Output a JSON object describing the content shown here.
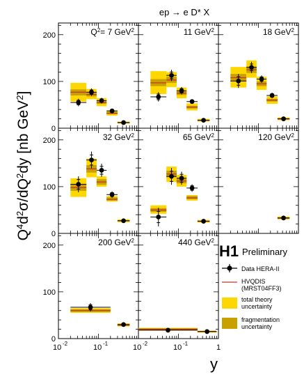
{
  "title": "ep → e D* X",
  "ylabel_parts": {
    "q4": "Q",
    "q4sup": "4",
    "d2": "d",
    "d2sup": "2",
    "sigma": "σ/dQ",
    "q2sup": "2",
    "dy": "dy [nb GeV",
    "unitsup": "2",
    "close": "]"
  },
  "xlabel": "y",
  "x_ticks": [
    "10",
    "-2",
    "10",
    "-1",
    "1"
  ],
  "y_ticks": [
    "0",
    "100",
    "200"
  ],
  "experiment": "H1",
  "status": "Preliminary",
  "legend": {
    "data": "Data HERA-II",
    "model_line1": "HVQDIS",
    "model_line2": "(MRST04FF3)",
    "total_line1": "total theory",
    "total_line2": "uncertainty",
    "frag_line1": "fragmentation",
    "frag_line2": "uncertainty"
  },
  "colors": {
    "total_band": "#ffd700",
    "fragmentation_band": "#c8a000",
    "theory_line": "#c0392b",
    "data": "#000000"
  },
  "chart_data": {
    "type": "scatter",
    "title": "ep → e D* X",
    "xlabel": "y",
    "ylabel": "Q^4 d^2σ/dQ^2 dy [nb GeV^2]",
    "x_scale": "log",
    "xlim": [
      0.01,
      1
    ],
    "ylim": [
      0,
      225
    ],
    "panels": [
      {
        "label": "Q² = 7 GeV²",
        "label_parts": {
          "pre": "Q",
          "presup": "2",
          "mid": "=  7 GeV",
          "sup": "2"
        },
        "points": [
          {
            "xlo": 0.02,
            "xhi": 0.05,
            "y": 55,
            "err": 8,
            "theory": 77,
            "frag_lo": 70,
            "frag_hi": 83,
            "tot_lo": 57,
            "tot_hi": 97
          },
          {
            "xlo": 0.05,
            "xhi": 0.09,
            "y": 77,
            "err": 8,
            "theory": 72,
            "frag_lo": 68,
            "frag_hi": 77,
            "tot_lo": 62,
            "tot_hi": 84
          },
          {
            "xlo": 0.09,
            "xhi": 0.16,
            "y": 59,
            "err": 6,
            "theory": 55,
            "frag_lo": 52,
            "frag_hi": 58,
            "tot_lo": 47,
            "tot_hi": 64
          },
          {
            "xlo": 0.16,
            "xhi": 0.3,
            "y": 37,
            "err": 4,
            "theory": 32,
            "frag_lo": 30,
            "frag_hi": 35,
            "tot_lo": 27,
            "tot_hi": 38
          },
          {
            "xlo": 0.3,
            "xhi": 0.6,
            "y": 12,
            "err": 2,
            "theory": 12,
            "frag_lo": 11,
            "frag_hi": 13,
            "tot_lo": 10,
            "tot_hi": 14
          }
        ]
      },
      {
        "label": "11 GeV²",
        "label_parts": {
          "pre": "",
          "presup": "",
          "mid": "11 GeV",
          "sup": "2"
        },
        "points": [
          {
            "xlo": 0.02,
            "xhi": 0.05,
            "y": 67,
            "err": 10,
            "theory": 97,
            "frag_lo": 90,
            "frag_hi": 105,
            "tot_lo": 73,
            "tot_hi": 122
          },
          {
            "xlo": 0.05,
            "xhi": 0.09,
            "y": 113,
            "err": 12,
            "theory": 103,
            "frag_lo": 97,
            "frag_hi": 110,
            "tot_lo": 88,
            "tot_hi": 120
          },
          {
            "xlo": 0.09,
            "xhi": 0.16,
            "y": 80,
            "err": 8,
            "theory": 75,
            "frag_lo": 71,
            "frag_hi": 79,
            "tot_lo": 64,
            "tot_hi": 87
          },
          {
            "xlo": 0.16,
            "xhi": 0.3,
            "y": 57,
            "err": 5,
            "theory": 45,
            "frag_lo": 42,
            "frag_hi": 48,
            "tot_lo": 38,
            "tot_hi": 53
          },
          {
            "xlo": 0.3,
            "xhi": 0.6,
            "y": 17,
            "err": 3,
            "theory": 17,
            "frag_lo": 16,
            "frag_hi": 18,
            "tot_lo": 14,
            "tot_hi": 20
          }
        ]
      },
      {
        "label": "18 GeV²",
        "label_parts": {
          "pre": "",
          "presup": "",
          "mid": "18 GeV",
          "sup": "2"
        },
        "points": [
          {
            "xlo": 0.02,
            "xhi": 0.05,
            "y": 101,
            "err": 15,
            "theory": 108,
            "frag_lo": 100,
            "frag_hi": 116,
            "tot_lo": 87,
            "tot_hi": 131
          },
          {
            "xlo": 0.05,
            "xhi": 0.09,
            "y": 130,
            "err": 12,
            "theory": 125,
            "frag_lo": 118,
            "frag_hi": 132,
            "tot_lo": 108,
            "tot_hi": 145
          },
          {
            "xlo": 0.09,
            "xhi": 0.16,
            "y": 105,
            "err": 8,
            "theory": 95,
            "frag_lo": 90,
            "frag_hi": 100,
            "tot_lo": 82,
            "tot_hi": 110
          },
          {
            "xlo": 0.16,
            "xhi": 0.3,
            "y": 70,
            "err": 6,
            "theory": 60,
            "frag_lo": 57,
            "frag_hi": 63,
            "tot_lo": 52,
            "tot_hi": 68
          },
          {
            "xlo": 0.3,
            "xhi": 0.6,
            "y": 20,
            "err": 3,
            "theory": 20,
            "frag_lo": 19,
            "frag_hi": 21,
            "tot_lo": 17,
            "tot_hi": 23
          }
        ]
      },
      {
        "label": "32 GeV²",
        "label_parts": {
          "pre": "",
          "presup": "",
          "mid": "32 GeV",
          "sup": "2"
        },
        "points": [
          {
            "xlo": 0.02,
            "xhi": 0.05,
            "y": 105,
            "err": 17,
            "theory": 98,
            "frag_lo": 91,
            "frag_hi": 106,
            "tot_lo": 78,
            "tot_hi": 118
          },
          {
            "xlo": 0.05,
            "xhi": 0.09,
            "y": 157,
            "err": 18,
            "theory": 138,
            "frag_lo": 130,
            "frag_hi": 146,
            "tot_lo": 120,
            "tot_hi": 160
          },
          {
            "xlo": 0.09,
            "xhi": 0.16,
            "y": 135,
            "err": 14,
            "theory": 110,
            "frag_lo": 104,
            "frag_hi": 116,
            "tot_lo": 100,
            "tot_hi": 122
          },
          {
            "xlo": 0.16,
            "xhi": 0.3,
            "y": 83,
            "err": 7,
            "theory": 73,
            "frag_lo": 70,
            "frag_hi": 77,
            "tot_lo": 68,
            "tot_hi": 80
          },
          {
            "xlo": 0.3,
            "xhi": 0.6,
            "y": 27,
            "err": 3,
            "theory": 27,
            "frag_lo": 26,
            "frag_hi": 28,
            "tot_lo": 24,
            "tot_hi": 30
          }
        ]
      },
      {
        "label": "65 GeV²",
        "label_parts": {
          "pre": "",
          "presup": "",
          "mid": "65 GeV",
          "sup": "2"
        },
        "points": [
          {
            "xlo": 0.02,
            "xhi": 0.05,
            "y": 35,
            "err": 20,
            "theory": 50,
            "frag_lo": 46,
            "frag_hi": 54,
            "tot_lo": 42,
            "tot_hi": 60
          },
          {
            "xlo": 0.05,
            "xhi": 0.09,
            "y": 122,
            "err": 18,
            "theory": 127,
            "frag_lo": 120,
            "frag_hi": 134,
            "tot_lo": 110,
            "tot_hi": 143
          },
          {
            "xlo": 0.09,
            "xhi": 0.16,
            "y": 118,
            "err": 14,
            "theory": 112,
            "frag_lo": 107,
            "frag_hi": 117,
            "tot_lo": 100,
            "tot_hi": 125
          },
          {
            "xlo": 0.16,
            "xhi": 0.3,
            "y": 97,
            "err": 8,
            "theory": 76,
            "frag_lo": 73,
            "frag_hi": 80,
            "tot_lo": 70,
            "tot_hi": 82
          },
          {
            "xlo": 0.3,
            "xhi": 0.6,
            "y": 26,
            "err": 3,
            "theory": 26,
            "frag_lo": 25,
            "frag_hi": 27,
            "tot_lo": 23,
            "tot_hi": 29
          }
        ]
      },
      {
        "label": "120 GeV²",
        "label_parts": {
          "pre": "",
          "presup": "",
          "mid": "120 GeV",
          "sup": "2"
        },
        "points": [
          {
            "xlo": 0.3,
            "xhi": 0.6,
            "y": 33,
            "err": 5,
            "theory": 33,
            "frag_lo": 31,
            "frag_hi": 34,
            "tot_lo": 30,
            "tot_hi": 36
          }
        ]
      },
      {
        "label": "200 GeV²",
        "label_parts": {
          "pre": "",
          "presup": "",
          "mid": "200 GeV",
          "sup": "2"
        },
        "points": [
          {
            "xlo": 0.02,
            "xhi": 0.2,
            "y": 67,
            "err": 9,
            "theory": 60,
            "frag_lo": 57,
            "frag_hi": 63,
            "tot_lo": 55,
            "tot_hi": 65
          },
          {
            "xlo": 0.3,
            "xhi": 0.6,
            "y": 30,
            "err": 4,
            "theory": 29,
            "frag_lo": 27,
            "frag_hi": 31,
            "tot_lo": 26,
            "tot_hi": 33
          }
        ]
      },
      {
        "label": "440 GeV²",
        "label_parts": {
          "pre": "",
          "presup": "",
          "mid": "440 GeV",
          "sup": "2"
        },
        "points": [
          {
            "xlo": 0.01,
            "xhi": 0.3,
            "y": 18,
            "err": 4,
            "theory": 20,
            "frag_lo": 18,
            "frag_hi": 22,
            "tot_lo": 17,
            "tot_hi": 23
          },
          {
            "xlo": 0.3,
            "xhi": 0.9,
            "y": 15,
            "err": 3,
            "theory": 15,
            "frag_lo": 14,
            "frag_hi": 16,
            "tot_lo": 13,
            "tot_hi": 17
          }
        ]
      }
    ]
  }
}
